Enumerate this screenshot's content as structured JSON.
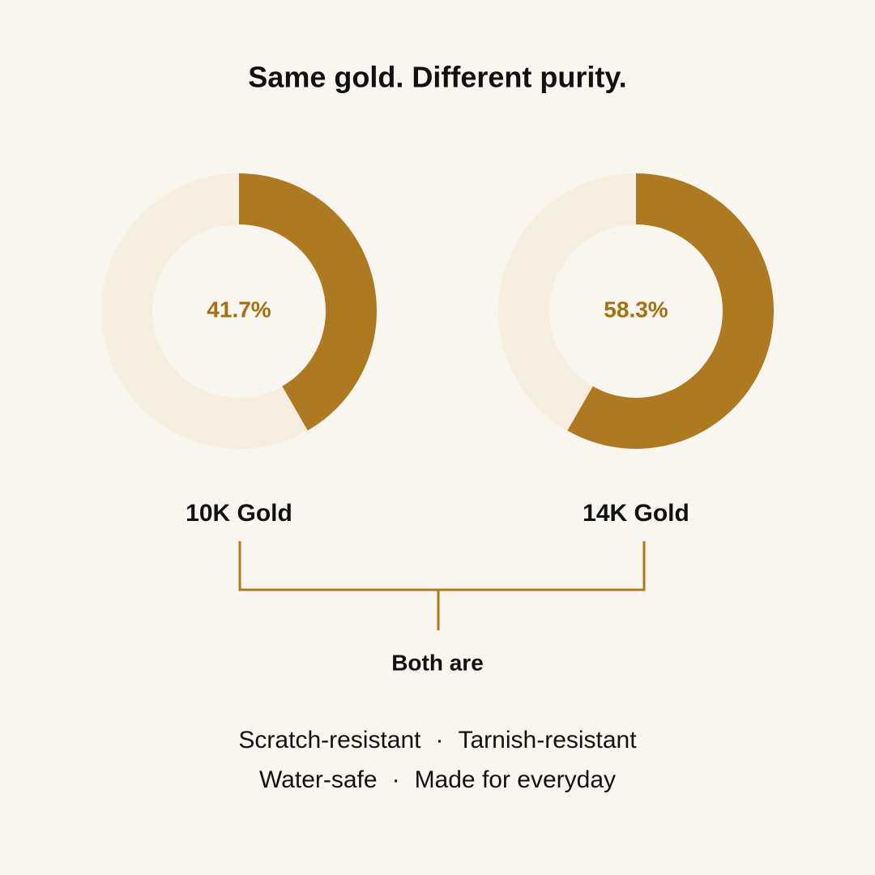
{
  "title": "Same gold. Different purity.",
  "chart_data": [
    {
      "type": "donut",
      "title": "10K Gold",
      "values": [
        41.7,
        58.3
      ],
      "value_labels": [
        "41.7%",
        null
      ],
      "colors": [
        "#ad7921",
        "#f6eee0"
      ]
    },
    {
      "type": "donut",
      "title": "14K Gold",
      "values": [
        58.3,
        41.7
      ],
      "value_labels": [
        "58.3%",
        null
      ],
      "colors": [
        "#ad7921",
        "#f6eee0"
      ]
    }
  ],
  "bracket_label": "Both are",
  "separator": "·",
  "features": [
    [
      "Scratch-resistant",
      "Tarnish-resistant"
    ],
    [
      "Water-safe",
      "Made for everyday"
    ]
  ]
}
